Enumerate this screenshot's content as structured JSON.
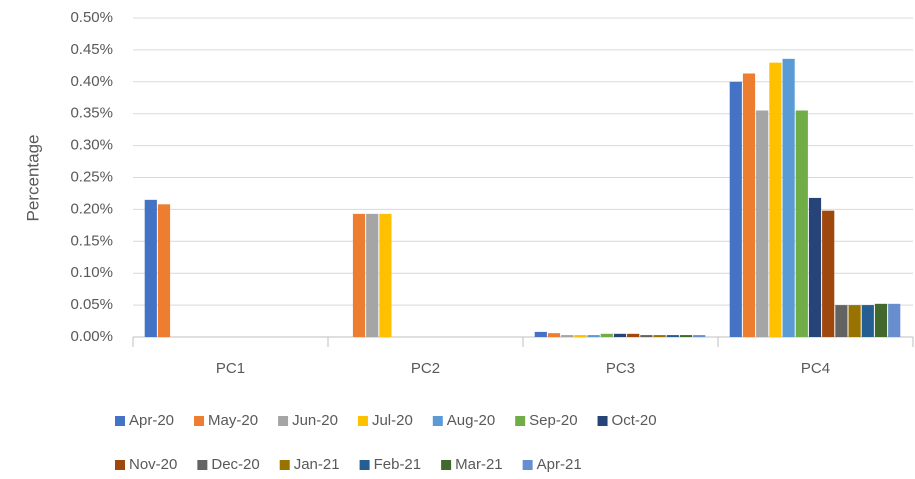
{
  "chart_data": {
    "type": "bar",
    "y_label": "Percentage",
    "categories": [
      "PC1",
      "PC2",
      "PC3",
      "PC4"
    ],
    "series": [
      {
        "name": "Apr-20",
        "color": "#4472c4",
        "values": [
          0.215,
          0,
          0.008,
          0.4
        ]
      },
      {
        "name": "May-20",
        "color": "#ed7d31",
        "values": [
          0.208,
          0.193,
          0.006,
          0.413
        ]
      },
      {
        "name": "Jun-20",
        "color": "#a5a5a5",
        "values": [
          0,
          0.193,
          0.003,
          0.355
        ]
      },
      {
        "name": "Jul-20",
        "color": "#ffc000",
        "values": [
          0,
          0.193,
          0.003,
          0.43
        ]
      },
      {
        "name": "Aug-20",
        "color": "#5b9bd5",
        "values": [
          0,
          0,
          0.003,
          0.436
        ]
      },
      {
        "name": "Sep-20",
        "color": "#70ad47",
        "values": [
          0,
          0,
          0.005,
          0.355
        ]
      },
      {
        "name": "Oct-20",
        "color": "#264478",
        "values": [
          0,
          0,
          0.005,
          0.218
        ]
      },
      {
        "name": "Nov-20",
        "color": "#9e480e",
        "values": [
          0,
          0,
          0.005,
          0.198
        ]
      },
      {
        "name": "Dec-20",
        "color": "#636363",
        "values": [
          0,
          0,
          0.003,
          0.05
        ]
      },
      {
        "name": "Jan-21",
        "color": "#997300",
        "values": [
          0,
          0,
          0.003,
          0.05
        ]
      },
      {
        "name": "Feb-21",
        "color": "#255e91",
        "values": [
          0,
          0,
          0.003,
          0.05
        ]
      },
      {
        "name": "Mar-21",
        "color": "#43682b",
        "values": [
          0,
          0,
          0.003,
          0.052
        ]
      },
      {
        "name": "Apr-21",
        "color": "#698ed0",
        "values": [
          0,
          0,
          0.003,
          0.052
        ]
      }
    ],
    "ylim": [
      0,
      0.5
    ],
    "yticks": [
      {
        "value": 0,
        "label": "0.00%"
      },
      {
        "value": 0.05,
        "label": "0.05%"
      },
      {
        "value": 0.1,
        "label": "0.10%"
      },
      {
        "value": 0.15,
        "label": "0.15%"
      },
      {
        "value": 0.2,
        "label": "0.20%"
      },
      {
        "value": 0.25,
        "label": "0.25%"
      },
      {
        "value": 0.3,
        "label": "0.30%"
      },
      {
        "value": 0.35,
        "label": "0.35%"
      },
      {
        "value": 0.4,
        "label": "0.40%"
      },
      {
        "value": 0.45,
        "label": "0.45%"
      },
      {
        "value": 0.5,
        "label": "0.50%"
      }
    ],
    "grid": true,
    "legend": "bottom"
  }
}
